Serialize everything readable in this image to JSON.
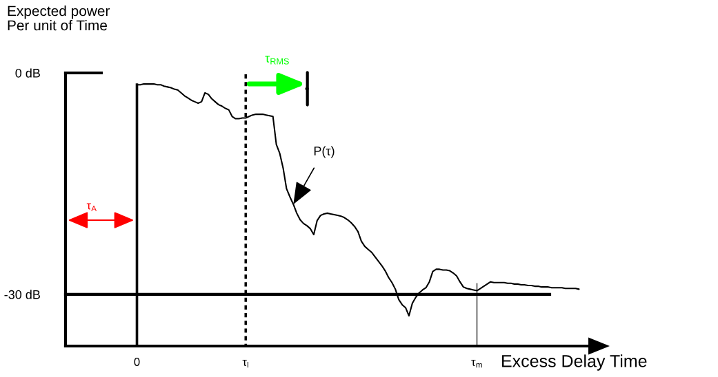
{
  "chart_data": {
    "type": "line",
    "xlabel": "Excess Delay Time",
    "ylabel": "Expected power\nPer unit of Time",
    "categories": [
      null,
      null,
      null,
      null,
      null,
      null,
      null,
      null,
      null,
      null,
      null,
      null,
      null,
      null,
      null,
      null,
      null,
      null,
      null,
      null,
      null,
      "0",
      null,
      null,
      null,
      null,
      null,
      null,
      null,
      null,
      null,
      null,
      null,
      null,
      null,
      null,
      null,
      null,
      null,
      null,
      null,
      null,
      null,
      null,
      null,
      null,
      null,
      null,
      null,
      null,
      null,
      null,
      null,
      "τ$_{l}$",
      null,
      null,
      null,
      null,
      null,
      null,
      null,
      null,
      null,
      null,
      null,
      null,
      null,
      null,
      null,
      null,
      null,
      null,
      null,
      null,
      null,
      null,
      null,
      null,
      null,
      null,
      null,
      null,
      null,
      null,
      null,
      null,
      null,
      null,
      null,
      null,
      null,
      null,
      null,
      null,
      null,
      null,
      null,
      null,
      null,
      null,
      null,
      null,
      null,
      null,
      null,
      null,
      null,
      null,
      null,
      null,
      null,
      null,
      null,
      null,
      null,
      null,
      null,
      null,
      null,
      null,
      null,
      "τ$_{m}$",
      null,
      null,
      null,
      null,
      null,
      null,
      null,
      null,
      null,
      null,
      null,
      null,
      null,
      null,
      null,
      null,
      null,
      null,
      null,
      null,
      null,
      null,
      null,
      null,
      null,
      null,
      null,
      null,
      null,
      null
    ],
    "series": [
      {
        "name": "P(τ)",
        "color": "#000000",
        "values": [
          null,
          null,
          null,
          null,
          null,
          null,
          null,
          null,
          null,
          null,
          null,
          null,
          null,
          null,
          null,
          null,
          null,
          null,
          null,
          null,
          null,
          -1.6,
          -1.6,
          -1.5,
          -1.5,
          -1.5,
          -1.5,
          -1.6,
          -1.6,
          -1.8,
          -1.9,
          -2.0,
          -2.2,
          -2.3,
          -2.7,
          -3.1,
          -3.4,
          -3.7,
          -3.9,
          -4.1,
          -3.9,
          -2.7,
          -2.9,
          -3.5,
          -3.9,
          -4.3,
          -4.5,
          -4.8,
          -5.0,
          -5.9,
          -6.2,
          -6.2,
          -6.1,
          -6.1,
          -5.9,
          -5.7,
          -5.6,
          -5.6,
          -5.6,
          -5.7,
          -5.8,
          -5.9,
          -9.7,
          -10.9,
          -12.9,
          -15.7,
          -16.8,
          -17.8,
          -19.0,
          -19.9,
          -20.4,
          -20.7,
          -21.1,
          -21.9,
          -20.0,
          -19.3,
          -19.1,
          -19.0,
          -19.1,
          -19.2,
          -19.3,
          -19.4,
          -19.6,
          -19.9,
          -20.3,
          -20.8,
          -21.5,
          -22.8,
          -23.5,
          -23.9,
          -24.3,
          -24.9,
          -25.5,
          -26.1,
          -26.8,
          -27.7,
          -28.4,
          -29.3,
          -30.7,
          -31.4,
          -31.8,
          -32.9,
          -31.2,
          -30.4,
          -29.8,
          -29.4,
          -29.1,
          -28.3,
          -26.9,
          -26.6,
          -26.6,
          -26.7,
          -26.7,
          -26.8,
          -27.1,
          -27.5,
          -28.3,
          -29.0,
          -29.2,
          -29.3,
          -29.4,
          -29.5,
          -29.2,
          -28.9,
          -28.6,
          -28.3,
          -28.4,
          -28.4,
          -28.4,
          -28.4,
          -28.5,
          -28.5,
          -28.6,
          -28.6,
          -28.7,
          -28.7,
          -28.8,
          -28.8,
          -28.9,
          -28.9,
          -29.0,
          -29.0,
          -29.0,
          -29.1,
          -29.1,
          -29.1,
          -29.1,
          -29.2,
          -29.2,
          -29.2,
          -29.2,
          -29.3
        ]
      }
    ],
    "ylim": [
      -37,
      0
    ],
    "yticks": [
      {
        "value": 0,
        "label": "0 dB"
      },
      {
        "value": -30,
        "label": "-30 dB"
      }
    ],
    "ref_lines": [
      {
        "axis": "x",
        "value": "τ$_{l}$",
        "color": "#000000",
        "line_style": "dotted"
      },
      {
        "axis": "x",
        "value": "0",
        "color": "#000000",
        "line_style": "solid"
      },
      {
        "axis": "x",
        "value": "τ$_{m}$",
        "color": "#000000",
        "line_style": "solid"
      },
      {
        "axis": "y",
        "value": -30,
        "color": "#000000",
        "line_style": "solid"
      }
    ],
    "annotations": [
      "τ$_{RMS}$",
      "τ$_{A}$"
    ]
  }
}
